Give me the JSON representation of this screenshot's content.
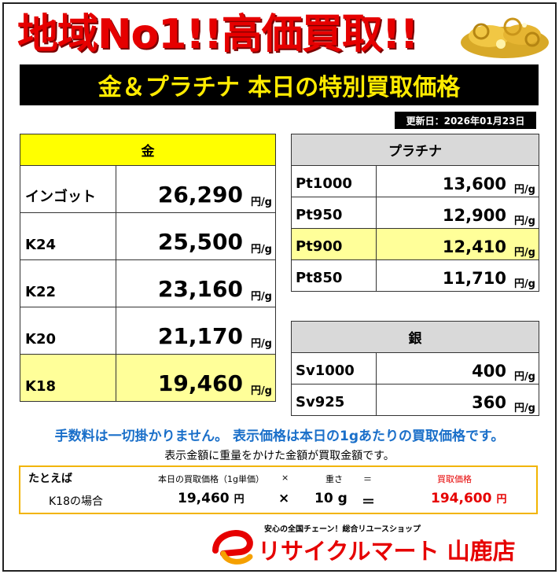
{
  "header": {
    "headline": "地域No1!!高価買取!!",
    "banner": "金＆プラチナ 本日の特別買取価格",
    "updated": "更新日：2026年01月23日"
  },
  "gold": {
    "title": "金",
    "unit": "円/g",
    "rows": [
      {
        "name": "インゴット",
        "price": "26,290"
      },
      {
        "name": "K24",
        "price": "25,500"
      },
      {
        "name": "K22",
        "price": "23,160"
      },
      {
        "name": "K20",
        "price": "21,170"
      },
      {
        "name": "K18",
        "price": "19,460"
      }
    ]
  },
  "platinum": {
    "title": "プラチナ",
    "unit": "円/g",
    "rows": [
      {
        "name": "Pt1000",
        "price": "13,600"
      },
      {
        "name": "Pt950",
        "price": "12,900"
      },
      {
        "name": "Pt900",
        "price": "12,410"
      },
      {
        "name": "Pt850",
        "price": "11,710"
      }
    ]
  },
  "silver": {
    "title": "銀",
    "unit": "円/g",
    "rows": [
      {
        "name": "Sv1000",
        "price": "400"
      },
      {
        "name": "Sv925",
        "price": "360"
      }
    ]
  },
  "notice": "手数料は一切掛かりません。 表示価格は本日の1gあたりの買取価格です。",
  "subnote": "表示金額に重量をかけた金額が買取金額です。",
  "example": {
    "label": "たとえば",
    "h_price": "本日の買取価格（1g単価）",
    "h_times": "×",
    "h_weight": "重さ",
    "h_equals": "＝",
    "h_result": "買取価格",
    "case": "K18の場合",
    "price": "19,460",
    "yen": "円",
    "times": "×",
    "weight": "10 g",
    "equals": "＝",
    "result": "194,600",
    "result_yen": "円"
  },
  "footer": {
    "tagline": "安心の全国チェーン！総合リユースショップ",
    "store": "リサイクルマート 山鹿店"
  },
  "colors": {
    "headline": "#e60000",
    "banner_text": "#ffeb00",
    "gold_header": "#ffff00",
    "highlight": "#ffff99",
    "gray_header": "#d9d9d9",
    "notice": "#1a6fc9",
    "example_border": "#f2b400"
  }
}
